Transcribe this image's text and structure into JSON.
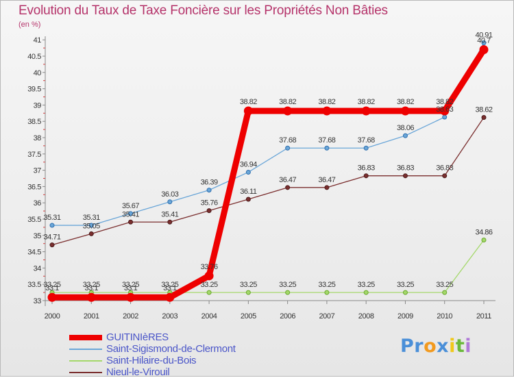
{
  "header": {
    "title": "Evolution du Taux de Taxe Foncière sur les Propriétés Non Bâties",
    "subtitle": "(en %)"
  },
  "chart_data": {
    "type": "line",
    "title": "Evolution du Taux de Taxe Foncière sur les Propriétés Non Bâties",
    "ylabel": "(en %)",
    "xlabel": "",
    "x": [
      "2000",
      "2001",
      "2002",
      "2003",
      "2004",
      "2005",
      "2006",
      "2007",
      "2008",
      "2009",
      "2010",
      "2011"
    ],
    "ylim": [
      33,
      41.25
    ],
    "yticks": [
      "33",
      "33.5",
      "34",
      "34.5",
      "35",
      "35.5",
      "36",
      "36.5",
      "37",
      "37.5",
      "38",
      "38.5",
      "39",
      "39.5",
      "40",
      "40.5",
      "41"
    ],
    "grid": false,
    "legend_position": "bottom-left",
    "series": [
      {
        "name": "GUITINIèRES",
        "color": "#ee0000",
        "values": [
          33.1,
          33.1,
          33.1,
          33.1,
          33.76,
          38.82,
          38.82,
          38.82,
          38.82,
          38.82,
          38.82,
          40.7
        ],
        "labels": [
          "33.1",
          "33.1",
          "33.1",
          "33.1",
          "33.76",
          "38.82",
          "38.82",
          "38.82",
          "38.82",
          "38.82",
          "38.82",
          "40.7"
        ]
      },
      {
        "name": "Saint-Sigismond-de-Clermont",
        "color": "#6aa6d8",
        "values": [
          35.31,
          35.31,
          35.67,
          36.03,
          36.39,
          36.94,
          37.68,
          37.68,
          37.68,
          38.06,
          38.63,
          40.91
        ],
        "labels": [
          "35.31",
          "35.31",
          "35.67",
          "36.03",
          "36.39",
          "36.94",
          "37.68",
          "37.68",
          "37.68",
          "38.06",
          "38.63",
          "40.91"
        ]
      },
      {
        "name": "Saint-Hilaire-du-Bois",
        "color": "#a4d86a",
        "values": [
          33.25,
          33.25,
          33.25,
          33.25,
          33.25,
          33.25,
          33.25,
          33.25,
          33.25,
          33.25,
          33.25,
          34.86
        ],
        "labels": [
          "33.25",
          "33.25",
          "33.25",
          "33.25",
          "33.25",
          "33.25",
          "33.25",
          "33.25",
          "33.25",
          "33.25",
          "33.25",
          "34.86"
        ]
      },
      {
        "name": "Nieul-le-Virouil",
        "color": "#7a2e2e",
        "values": [
          34.71,
          35.05,
          35.41,
          35.41,
          35.76,
          36.11,
          36.47,
          36.47,
          36.83,
          36.83,
          36.83,
          38.62
        ],
        "labels": [
          "34.71",
          "35.05",
          "35.41",
          "35.41",
          "35.76",
          "36.11",
          "36.47",
          "36.47",
          "36.83",
          "36.83",
          "36.83",
          "38.62"
        ]
      }
    ]
  },
  "branding": {
    "logo_parts": [
      "Pr",
      "o",
      "x",
      "i",
      "t",
      "i"
    ],
    "logo_colors": [
      "#4a8fd8",
      "#f29a1f",
      "#4a8fd8",
      "#f0c81a",
      "#6ab83a",
      "#b07ad8"
    ]
  }
}
